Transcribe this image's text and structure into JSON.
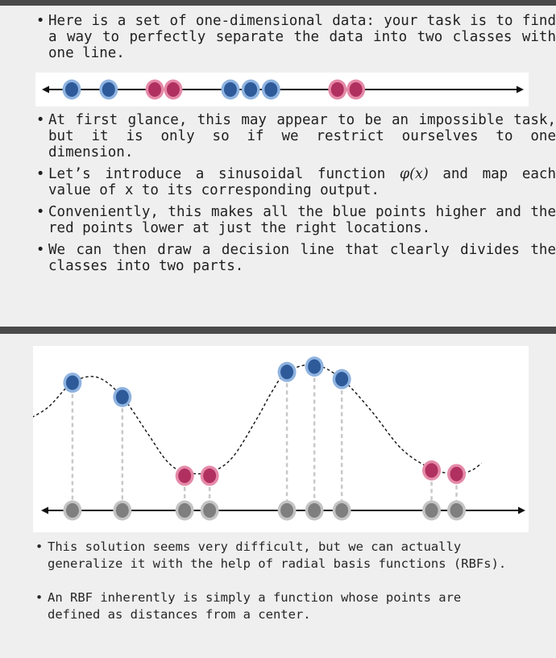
{
  "slide_top": {
    "bullets": [
      "Here is a set of one-dimensional data: your task is to find a way to perfectly separate the data into two classes with one line."
    ]
  },
  "slide_top_more": {
    "b1": "At first glance, this may appear to be an impossible task, but it is only so if we restrict ourselves to one dimension.",
    "b2_pre": "Let’s introduce a sinusoidal function ",
    "b2_func": "φ(x)",
    "b2_post": " and map each value of x to its corresponding output.",
    "b3": "Conveniently, this makes all the blue points higher and the red points lower at just the right locations.",
    "b4": "We can then draw a decision line that clearly divides the classes into two parts."
  },
  "slide_bottom": {
    "b1": "This solution seems very difficult, but we can actually generalize it with the help of radial basis functions (RBFs).",
    "b2": "An RBF inherently is simply a function whose points are defined as distances from a center."
  },
  "colors": {
    "blue_fill": "#2e5a99",
    "blue_ring": "#8fb3e0",
    "red_fill": "#b03060",
    "red_ring": "#e58aa8",
    "gray_fill": "#7f7f7f",
    "gray_ring": "#c4c4c4",
    "band": "#4a4a4a"
  },
  "figure_1d": {
    "points": [
      {
        "x": 1,
        "class": "blue"
      },
      {
        "x": 2,
        "class": "blue"
      },
      {
        "x": 3.25,
        "class": "red"
      },
      {
        "x": 3.75,
        "class": "red"
      },
      {
        "x": 5.3,
        "class": "blue"
      },
      {
        "x": 5.85,
        "class": "blue"
      },
      {
        "x": 6.4,
        "class": "blue"
      },
      {
        "x": 8.2,
        "class": "red"
      },
      {
        "x": 8.7,
        "class": "red"
      }
    ]
  },
  "figure_mapped": {
    "curve": "φ(x)",
    "points": [
      {
        "x": 1,
        "phi": 0.7,
        "class": "blue"
      },
      {
        "x": 2,
        "phi": 0.62,
        "class": "blue"
      },
      {
        "x": 3.25,
        "phi": 0.18,
        "class": "red"
      },
      {
        "x": 3.75,
        "phi": 0.18,
        "class": "red"
      },
      {
        "x": 5.3,
        "phi": 0.76,
        "class": "blue"
      },
      {
        "x": 5.85,
        "phi": 0.79,
        "class": "blue"
      },
      {
        "x": 6.4,
        "phi": 0.72,
        "class": "blue"
      },
      {
        "x": 8.2,
        "phi": 0.21,
        "class": "red"
      },
      {
        "x": 8.7,
        "phi": 0.19,
        "class": "red"
      }
    ],
    "curve_samples": [
      [
        0.0,
        0.48
      ],
      [
        0.5,
        0.56
      ],
      [
        1.0,
        0.7
      ],
      [
        1.5,
        0.73
      ],
      [
        2.0,
        0.62
      ],
      [
        2.5,
        0.42
      ],
      [
        2.9,
        0.26
      ],
      [
        3.25,
        0.2
      ],
      [
        3.75,
        0.2
      ],
      [
        4.2,
        0.28
      ],
      [
        4.7,
        0.5
      ],
      [
        5.0,
        0.65
      ],
      [
        5.3,
        0.76
      ],
      [
        5.85,
        0.8
      ],
      [
        6.4,
        0.72
      ],
      [
        7.0,
        0.54
      ],
      [
        7.6,
        0.33
      ],
      [
        8.2,
        0.22
      ],
      [
        8.7,
        0.19
      ],
      [
        9.0,
        0.21
      ],
      [
        9.2,
        0.25
      ]
    ]
  }
}
